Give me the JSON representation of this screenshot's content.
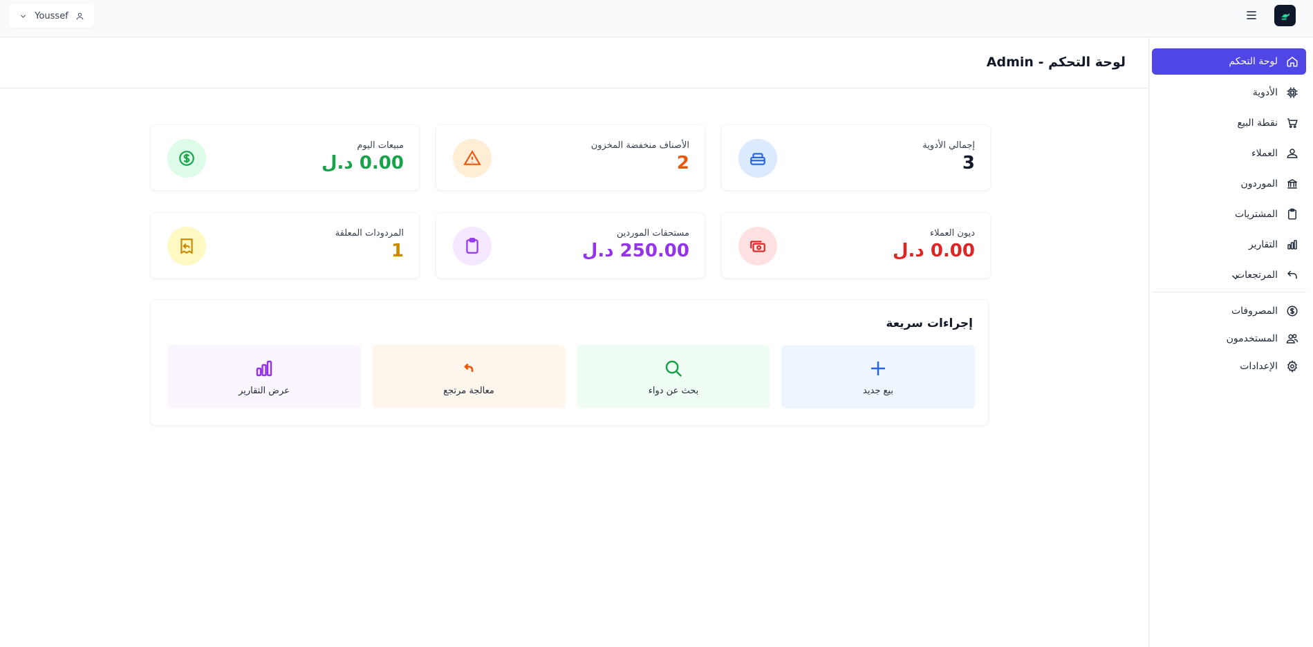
{
  "header": {
    "user_name": "Youssef",
    "user_icon": "user-icon",
    "menu_icon": "hamburger-icon",
    "logo_icon": "pharmacy-logo-icon"
  },
  "page": {
    "title": "لوحة التحكم - Admin"
  },
  "sidebar": {
    "items": [
      {
        "label": "لوحة التحكم",
        "icon": "home-icon",
        "active": true
      },
      {
        "label": "الأدوية",
        "icon": "chip-icon"
      },
      {
        "label": "نقطة البيع",
        "icon": "cart-icon"
      },
      {
        "label": "العملاء",
        "icon": "user-icon"
      },
      {
        "label": "الموردون",
        "icon": "bank-icon"
      },
      {
        "label": "المشتريات",
        "icon": "clipboard-icon"
      },
      {
        "label": "التقارير",
        "icon": "bar-chart-icon"
      },
      {
        "label": "المرتجعات",
        "icon": "return-arrow-icon",
        "has_submenu": true
      },
      {
        "label": "المصروفات",
        "icon": "dollar-circle-icon"
      },
      {
        "label": "المستخدمون",
        "icon": "users-icon"
      },
      {
        "label": "الإعدادات",
        "icon": "gear-icon"
      }
    ]
  },
  "stats": [
    {
      "label": "إجمالي الأدوية",
      "value": "3",
      "color": "#111827",
      "icon": "pill-box-icon",
      "icon_color": "#2563eb",
      "icon_bg": "#dbeafe"
    },
    {
      "label": "الأصناف منخفضة المخزون",
      "value": "2",
      "color": "#ea580c",
      "icon": "warning-icon",
      "icon_color": "#ea580c",
      "icon_bg": "#ffedd5"
    },
    {
      "label": "مبيعات اليوم",
      "value": "0.00 د.ل",
      "color": "#16a34a",
      "icon": "dollar-circle-icon",
      "icon_color": "#16a34a",
      "icon_bg": "#dcfce7"
    },
    {
      "label": "ديون العملاء",
      "value": "0.00 د.ل",
      "color": "#dc2626",
      "icon": "cash-icon",
      "icon_color": "#dc2626",
      "icon_bg": "#fee2e2"
    },
    {
      "label": "مستحقات الموردين",
      "value": "250.00 د.ل",
      "color": "#9333ea",
      "icon": "clipboard-icon",
      "icon_color": "#9333ea",
      "icon_bg": "#f3e8ff"
    },
    {
      "label": "المردودات المعلقة",
      "value": "1",
      "color": "#ca8a04",
      "icon": "receipt-return-icon",
      "icon_color": "#ca8a04",
      "icon_bg": "#fef9c3"
    }
  ],
  "quick_actions": {
    "title": "إجراءات سريعة",
    "items": [
      {
        "label": "بيع جديد",
        "icon": "plus-icon",
        "bg": "#eff6ff",
        "icon_color": "#2563eb"
      },
      {
        "label": "بحث عن دواء",
        "icon": "search-icon",
        "bg": "#f0fdf4",
        "icon_color": "#16a34a"
      },
      {
        "label": "معالجة مرتجع",
        "icon": "return-arrow-icon",
        "bg": "#fff7ed",
        "icon_color": "#ea580c"
      },
      {
        "label": "عرض التقارير",
        "icon": "bar-chart-icon",
        "bg": "#faf5ff",
        "icon_color": "#9333ea"
      }
    ]
  }
}
